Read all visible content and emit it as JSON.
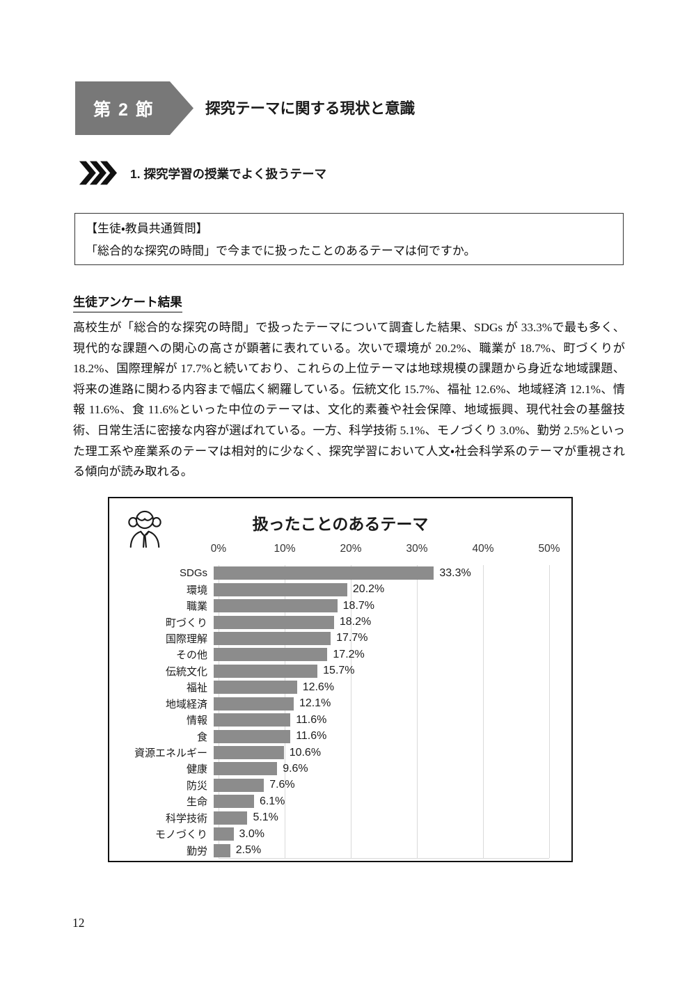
{
  "section_banner": {
    "label": "第 2 節"
  },
  "section_title": "探究テーマに関する現状と意識",
  "subsection": {
    "label": "1. 探究学習の授業でよく扱うテーマ"
  },
  "question_box": {
    "header": "【生徒・教員共通質問】",
    "body": "「総合的な探究の時間」で今までに扱ったことのあるテーマは何ですか。"
  },
  "results_heading": "生徒アンケート結果",
  "body_paragraph": "高校生が「総合的な探究の時間」で扱ったテーマについて調査した結果、SDGs が 33.3%で最も多く、現代的な課題への関心の高さが顕著に表れている。次いで環境が 20.2%、職業が 18.7%、町づくりが 18.2%、国際理解が 17.7%と続いており、これらの上位テーマは地球規模の課題から身近な地域課題、将来の進路に関わる内容まで幅広く網羅している。伝統文化 15.7%、福祉 12.6%、地域経済 12.1%、情報 11.6%、食 11.6%といった中位のテーマは、文化的素養や社会保障、地域振興、現代社会の基盤技術、日常生活に密接な内容が選ばれている。一方、科学技術 5.1%、モノづくり 3.0%、勤労 2.5%といった理工系や産業系のテーマは相対的に少なく、探究学習において人文・社会科学系のテーマが重視される傾向が読み取れる。",
  "chart_data": {
    "type": "bar",
    "orientation": "horizontal",
    "title": "扱ったことのあるテーマ",
    "icon": "student-girl-icon",
    "x_axis": {
      "min": 0,
      "max": 50,
      "ticks": [
        "0%",
        "10%",
        "20%",
        "30%",
        "40%",
        "50%"
      ],
      "position": "top"
    },
    "categories": [
      "SDGs",
      "環境",
      "職業",
      "町づくり",
      "国際理解",
      "その他",
      "伝統文化",
      "福祉",
      "地域経済",
      "情報",
      "食",
      "資源エネルギー",
      "健康",
      "防災",
      "生命",
      "科学技術",
      "モノづくり",
      "勤労"
    ],
    "values": [
      33.3,
      20.2,
      18.7,
      18.2,
      17.7,
      17.2,
      15.7,
      12.6,
      12.1,
      11.6,
      11.6,
      10.6,
      9.6,
      7.6,
      6.1,
      5.1,
      3.0,
      2.5
    ],
    "value_labels": [
      "33.3%",
      "20.2%",
      "18.7%",
      "18.2%",
      "17.7%",
      "17.2%",
      "15.7%",
      "12.6%",
      "12.1%",
      "11.6%",
      "11.6%",
      "10.6%",
      "9.6%",
      "7.6%",
      "6.1%",
      "5.1%",
      "3.0%",
      "2.5%"
    ],
    "grid": true,
    "legend": false,
    "bar_color": "#8c8c8c",
    "gridline_color": "#d9d9d9"
  },
  "colors": {
    "banner_gray": "#787878",
    "bar_gray": "#8c8c8c",
    "gridline_gray": "#d9d9d9",
    "text_black": "#1a1a1a"
  },
  "page": {
    "number": "12"
  }
}
